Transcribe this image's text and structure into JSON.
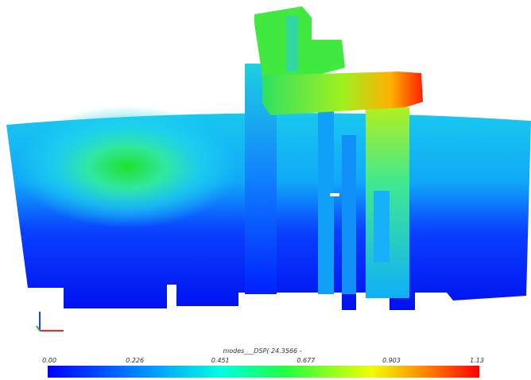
{
  "colorbar": {
    "title": "modes___DSP( 24.3566 -",
    "ticks": [
      "0.00",
      "0.226",
      "0.451",
      "0.677",
      "0.903",
      "1.13"
    ]
  }
}
